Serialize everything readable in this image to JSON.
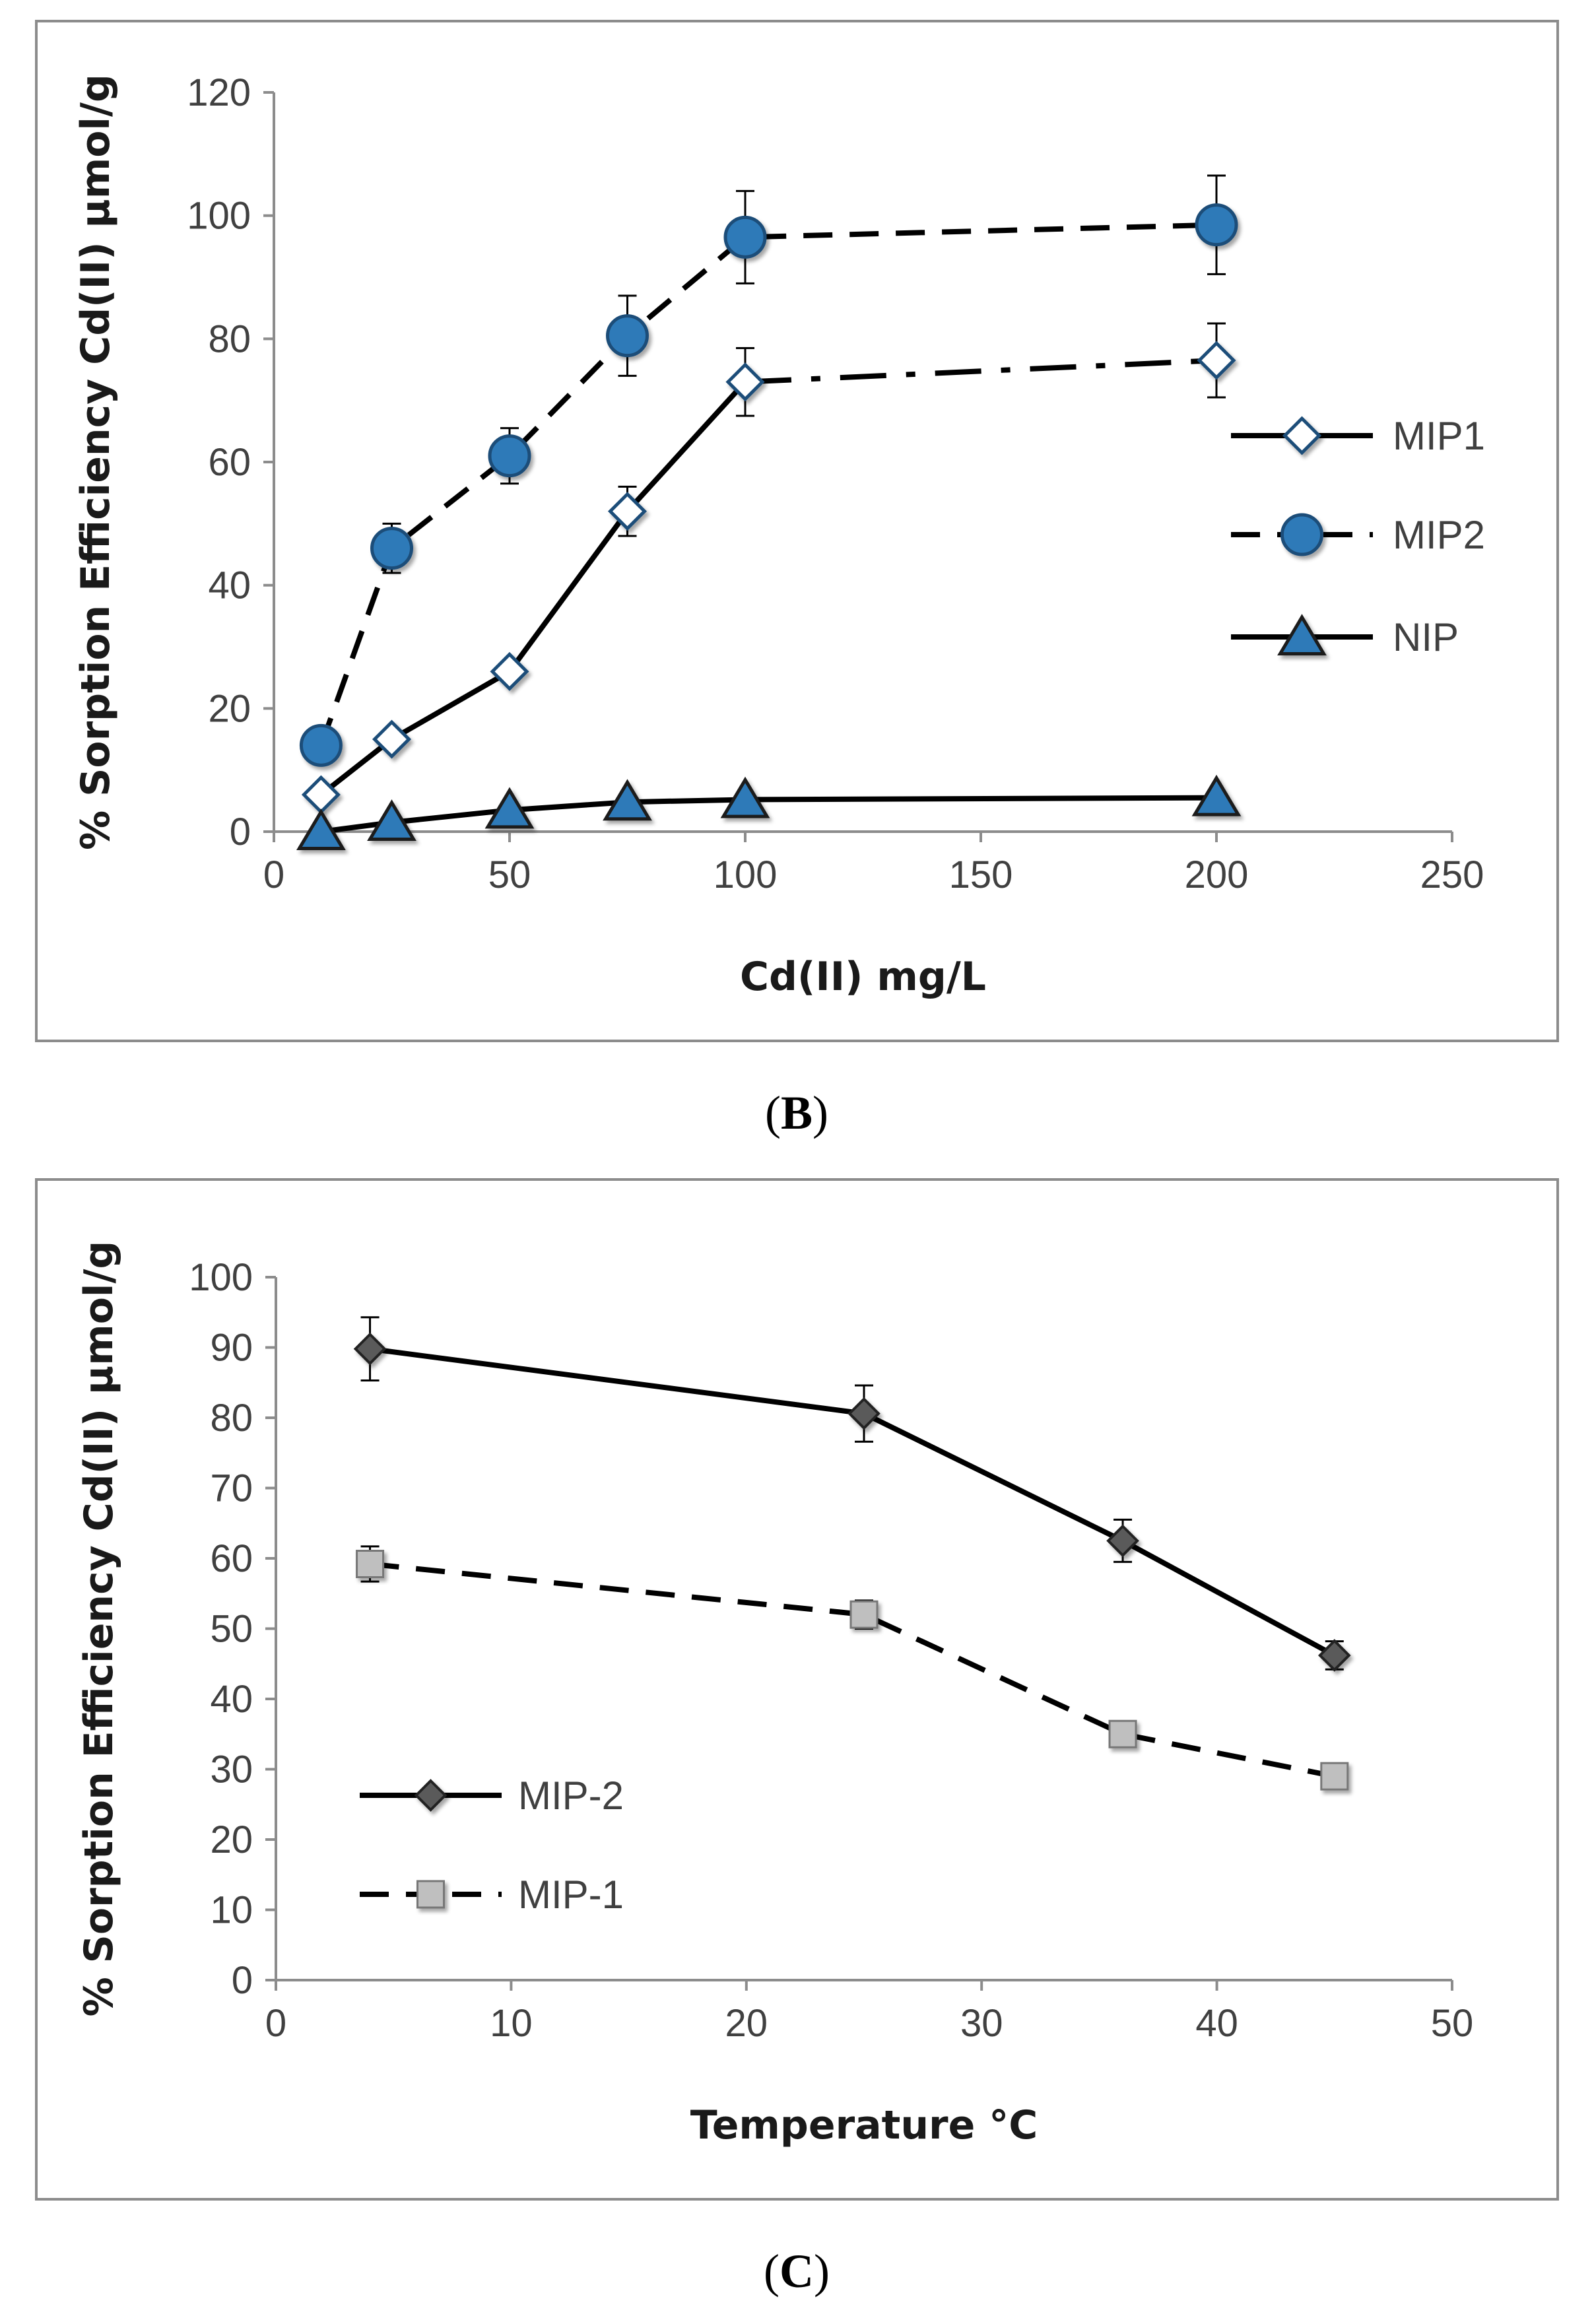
{
  "chart_data": [
    {
      "panel": "B",
      "type": "line",
      "title": "",
      "xlabel": "Cd(II) mg/L",
      "ylabel": "% Sorption Efficiency Cd(II) µmol/g",
      "xlim": [
        0,
        250
      ],
      "ylim": [
        0,
        120
      ],
      "xticks": [
        0,
        50,
        100,
        150,
        200,
        250
      ],
      "yticks": [
        0,
        20,
        40,
        60,
        80,
        100,
        120
      ],
      "grid": false,
      "legend_position": "right",
      "series": [
        {
          "name": "MIP1",
          "marker": "diamond-white",
          "line": "solid",
          "x": [
            10,
            25,
            50,
            75,
            100,
            200
          ],
          "y": [
            6,
            15,
            26,
            52,
            73,
            76.5
          ],
          "err": [
            0,
            0,
            0,
            4,
            5.5,
            6
          ]
        },
        {
          "name": "MIP2",
          "marker": "circle-blue",
          "line": "dashed",
          "x": [
            10,
            25,
            50,
            75,
            100,
            200
          ],
          "y": [
            14,
            46,
            61,
            80.5,
            96.5,
            98.5
          ],
          "err": [
            0,
            4,
            4.5,
            6.5,
            7.5,
            8
          ]
        },
        {
          "name": "NIP",
          "marker": "triangle-blue",
          "line": "solid",
          "x": [
            10,
            25,
            50,
            75,
            100,
            200
          ],
          "y": [
            0,
            1.5,
            3.5,
            4.8,
            5.2,
            5.5
          ],
          "err": [
            0,
            0,
            0,
            0,
            0,
            0
          ]
        }
      ]
    },
    {
      "panel": "C",
      "type": "line",
      "title": "",
      "xlabel": "Temperature °C",
      "ylabel": "% Sorption Efficiency Cd(II) µmol/g",
      "xlim": [
        0,
        50
      ],
      "ylim": [
        0,
        100
      ],
      "xticks": [
        0,
        10,
        20,
        30,
        40,
        50
      ],
      "yticks": [
        0,
        10,
        20,
        30,
        40,
        50,
        60,
        70,
        80,
        90,
        100
      ],
      "grid": false,
      "legend_position": "bottom-left",
      "series": [
        {
          "name": "MIP-2",
          "marker": "diamond-gray",
          "line": "solid",
          "x": [
            4,
            25,
            36,
            45
          ],
          "y": [
            89.8,
            80.6,
            62.5,
            46.2
          ],
          "err": [
            4.5,
            4,
            3,
            2
          ]
        },
        {
          "name": "MIP-1",
          "marker": "square-lightgray",
          "line": "dashed",
          "x": [
            4,
            25,
            36,
            45
          ],
          "y": [
            59.2,
            52,
            35,
            29
          ],
          "err": [
            2.5,
            2,
            1,
            0
          ]
        }
      ]
    }
  ],
  "captions": {
    "b_open": "(",
    "b_letter": "B",
    "b_close": ")",
    "c_open": "(",
    "c_letter": "C",
    "c_close": ")"
  },
  "colors": {
    "blue": "#2e7ab8",
    "blue_edge": "#1f4e79",
    "dark_gray": "#5a5a5a",
    "light_gray": "#bfbfbf",
    "line": "#000000",
    "frame": "#8c8c8c"
  }
}
